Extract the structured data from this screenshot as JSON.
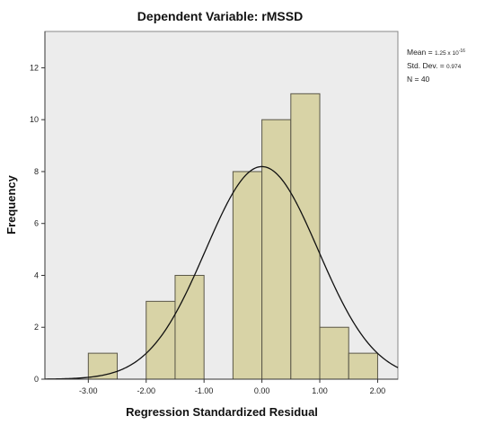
{
  "chart_data": {
    "type": "bar",
    "title": "Dependent Variable: rMSSD",
    "xlabel": "Regression Standardized Residual",
    "ylabel": "Frequency",
    "xlim": [
      -3.75,
      2.35
    ],
    "ylim": [
      0,
      13.4
    ],
    "xticks": [
      "-3.00",
      "-2.00",
      "-1.00",
      "0.00",
      "1.00",
      "2.00"
    ],
    "xtick_values": [
      -3,
      -2,
      -1,
      0,
      1,
      2
    ],
    "yticks": [
      "0",
      "2",
      "4",
      "6",
      "8",
      "10",
      "12"
    ],
    "ytick_values": [
      0,
      2,
      4,
      6,
      8,
      10,
      12
    ],
    "bins": [
      {
        "x0": -3.0,
        "x1": -2.5,
        "count": 1
      },
      {
        "x0": -2.5,
        "x1": -2.0,
        "count": 0
      },
      {
        "x0": -2.0,
        "x1": -1.5,
        "count": 3
      },
      {
        "x0": -1.5,
        "x1": -1.0,
        "count": 4
      },
      {
        "x0": -1.0,
        "x1": -0.5,
        "count": 0
      },
      {
        "x0": -0.5,
        "x1": 0.0,
        "count": 8
      },
      {
        "x0": 0.0,
        "x1": 0.5,
        "count": 10
      },
      {
        "x0": 0.5,
        "x1": 1.0,
        "count": 11
      },
      {
        "x0": 1.0,
        "x1": 1.5,
        "count": 2
      },
      {
        "x0": 1.5,
        "x1": 2.0,
        "count": 1
      }
    ],
    "normal_curve": {
      "mean": 0,
      "sd": 0.974,
      "n": 40,
      "bin_width": 0.5
    },
    "grid": false,
    "bar_color": "#d8d3a6",
    "bar_edge_color": "#5a5748",
    "plot_background": "#ececec"
  },
  "stats": {
    "mean_label": "Mean = ",
    "mean_value": "1.25 x 10",
    "mean_exponent": "-16",
    "sd_label": "Std. Dev. = ",
    "sd_value": "0.974",
    "n_text": "N = 40"
  }
}
